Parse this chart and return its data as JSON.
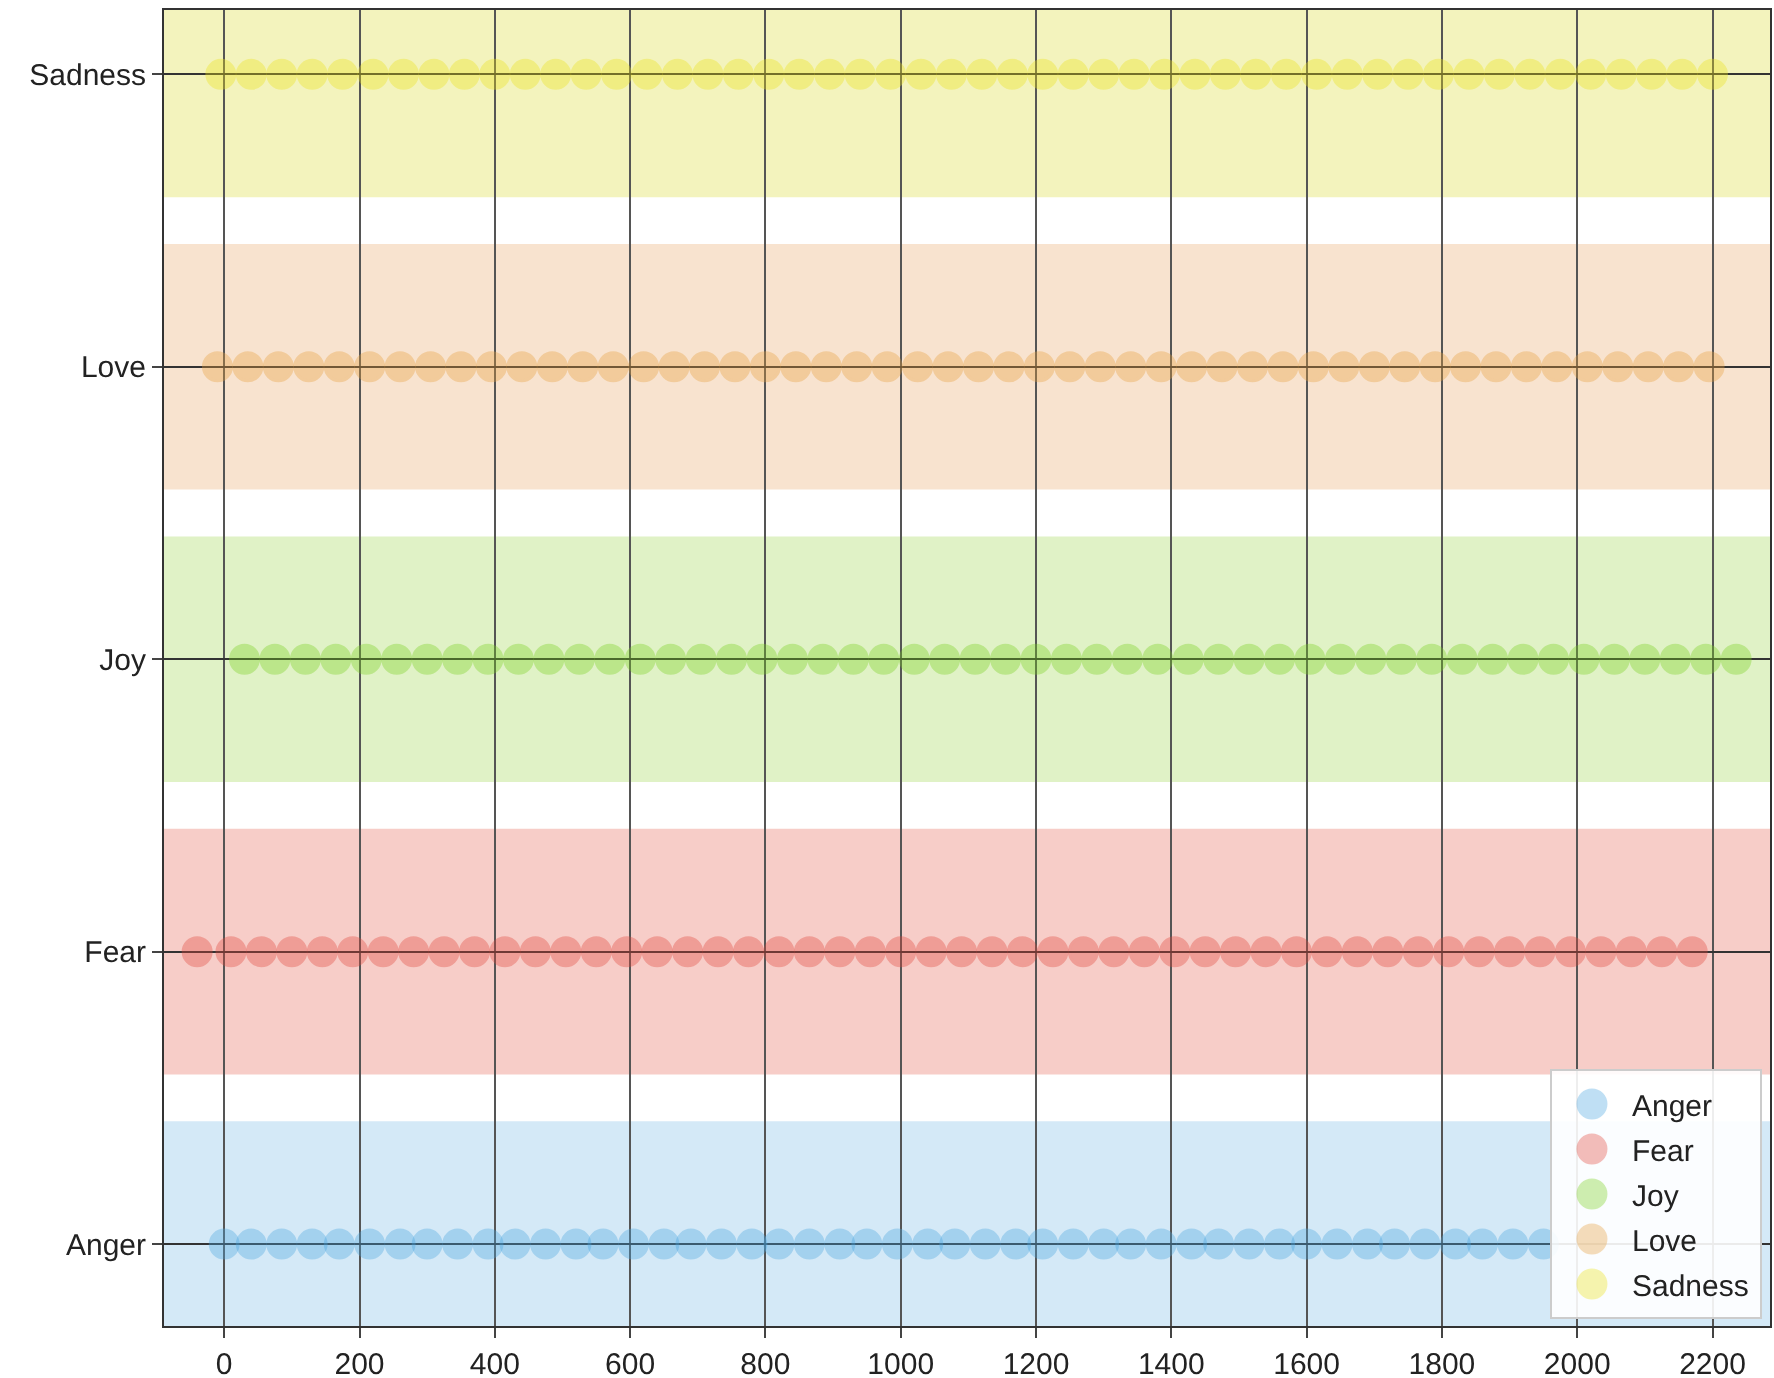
{
  "chart_data": {
    "type": "scatter",
    "orientation": "horizontal",
    "marker": "circle",
    "grid": true,
    "legend": "bottom right",
    "categories": [
      "Sadness",
      "Love",
      "Joy",
      "Fear",
      "Anger"
    ],
    "xlim": [
      -89,
      2285
    ],
    "xticks": [
      0,
      200,
      400,
      600,
      800,
      1000,
      1200,
      1400,
      1600,
      1800,
      2000,
      2200
    ],
    "bands": [
      {
        "axis": "y",
        "from": "Anger",
        "to": "Anger",
        "color": "#d4e9f7"
      },
      {
        "axis": "y",
        "from": "Fear",
        "to": "Fear",
        "color": "#f7cdc8"
      },
      {
        "axis": "y",
        "from": "Joy",
        "to": "Joy",
        "color": "#e0f2c6"
      },
      {
        "axis": "y",
        "from": "Love",
        "to": "Love",
        "color": "#f8e3cf"
      },
      {
        "axis": "y",
        "from": "Sadness",
        "to": "Sadness",
        "color": "#f3f3bd"
      }
    ],
    "series": [
      {
        "name": "Anger",
        "color": "#4aa6e0",
        "x": [
          "Anger",
          "Anger",
          "Anger",
          "Anger",
          "Anger",
          "Anger",
          "Anger",
          "Anger",
          "Anger",
          "Anger",
          "Anger",
          "Anger",
          "Anger",
          "Anger",
          "Anger",
          "Anger",
          "Anger",
          "Anger",
          "Anger",
          "Anger",
          "Anger",
          "Anger",
          "Anger",
          "Anger",
          "Anger",
          "Anger",
          "Anger",
          "Anger",
          "Anger",
          "Anger",
          "Anger",
          "Anger",
          "Anger",
          "Anger",
          "Anger",
          "Anger",
          "Anger",
          "Anger",
          "Anger",
          "Anger",
          "Anger",
          "Anger",
          "Anger",
          "Anger",
          "Anger",
          "Anger"
        ],
        "values": [
          0,
          40,
          85,
          130,
          170,
          215,
          260,
          300,
          345,
          390,
          430,
          475,
          520,
          560,
          605,
          650,
          690,
          735,
          780,
          820,
          865,
          910,
          950,
          995,
          1040,
          1080,
          1125,
          1170,
          1210,
          1255,
          1300,
          1340,
          1385,
          1430,
          1470,
          1515,
          1560,
          1600,
          1645,
          1690,
          1730,
          1775,
          1820,
          1860,
          1905,
          1950
        ]
      },
      {
        "name": "Fear",
        "color": "#e2453a",
        "x": [
          "Fear",
          "Fear",
          "Fear",
          "Fear",
          "Fear",
          "Fear",
          "Fear",
          "Fear",
          "Fear",
          "Fear",
          "Fear",
          "Fear",
          "Fear",
          "Fear",
          "Fear",
          "Fear",
          "Fear",
          "Fear",
          "Fear",
          "Fear",
          "Fear",
          "Fear",
          "Fear",
          "Fear",
          "Fear",
          "Fear",
          "Fear",
          "Fear",
          "Fear",
          "Fear",
          "Fear",
          "Fear",
          "Fear",
          "Fear",
          "Fear",
          "Fear",
          "Fear",
          "Fear",
          "Fear",
          "Fear",
          "Fear",
          "Fear",
          "Fear",
          "Fear",
          "Fear",
          "Fear",
          "Fear",
          "Fear",
          "Fear",
          "Fear"
        ],
        "values": [
          -40,
          10,
          55,
          100,
          145,
          190,
          235,
          280,
          325,
          370,
          415,
          460,
          505,
          550,
          595,
          640,
          685,
          730,
          775,
          820,
          865,
          910,
          955,
          1000,
          1045,
          1090,
          1135,
          1180,
          1225,
          1270,
          1315,
          1360,
          1405,
          1450,
          1495,
          1540,
          1585,
          1630,
          1675,
          1720,
          1765,
          1810,
          1855,
          1900,
          1945,
          1990,
          2035,
          2080,
          2125,
          2170
        ]
      },
      {
        "name": "Joy",
        "color": "#79d11e",
        "x": [
          "Joy",
          "Joy",
          "Joy",
          "Joy",
          "Joy",
          "Joy",
          "Joy",
          "Joy",
          "Joy",
          "Joy",
          "Joy",
          "Joy",
          "Joy",
          "Joy",
          "Joy",
          "Joy",
          "Joy",
          "Joy",
          "Joy",
          "Joy",
          "Joy",
          "Joy",
          "Joy",
          "Joy",
          "Joy",
          "Joy",
          "Joy",
          "Joy",
          "Joy",
          "Joy",
          "Joy",
          "Joy",
          "Joy",
          "Joy",
          "Joy",
          "Joy",
          "Joy",
          "Joy",
          "Joy",
          "Joy",
          "Joy",
          "Joy",
          "Joy",
          "Joy",
          "Joy",
          "Joy",
          "Joy",
          "Joy",
          "Joy",
          "Joy"
        ],
        "values": [
          30,
          75,
          120,
          165,
          210,
          255,
          300,
          345,
          390,
          435,
          480,
          525,
          570,
          615,
          660,
          705,
          750,
          795,
          840,
          885,
          930,
          975,
          1020,
          1065,
          1110,
          1155,
          1200,
          1245,
          1290,
          1335,
          1380,
          1425,
          1470,
          1515,
          1560,
          1605,
          1650,
          1695,
          1740,
          1785,
          1830,
          1875,
          1920,
          1965,
          2010,
          2055,
          2100,
          2145,
          2190,
          2235
        ]
      },
      {
        "name": "Love",
        "color": "#e79f3c",
        "x": [
          "Love",
          "Love",
          "Love",
          "Love",
          "Love",
          "Love",
          "Love",
          "Love",
          "Love",
          "Love",
          "Love",
          "Love",
          "Love",
          "Love",
          "Love",
          "Love",
          "Love",
          "Love",
          "Love",
          "Love",
          "Love",
          "Love",
          "Love",
          "Love",
          "Love",
          "Love",
          "Love",
          "Love",
          "Love",
          "Love",
          "Love",
          "Love",
          "Love",
          "Love",
          "Love",
          "Love",
          "Love",
          "Love",
          "Love",
          "Love",
          "Love",
          "Love",
          "Love",
          "Love",
          "Love",
          "Love",
          "Love",
          "Love",
          "Love",
          "Love"
        ],
        "values": [
          -10,
          35,
          80,
          125,
          170,
          215,
          260,
          305,
          350,
          395,
          440,
          485,
          530,
          575,
          620,
          665,
          710,
          755,
          800,
          845,
          890,
          935,
          980,
          1025,
          1070,
          1115,
          1160,
          1205,
          1250,
          1295,
          1340,
          1385,
          1430,
          1475,
          1520,
          1565,
          1610,
          1655,
          1700,
          1745,
          1790,
          1835,
          1880,
          1925,
          1970,
          2015,
          2060,
          2105,
          2150,
          2195
        ]
      },
      {
        "name": "Sadness",
        "color": "#ece317",
        "x": [
          "Sadness",
          "Sadness",
          "Sadness",
          "Sadness",
          "Sadness",
          "Sadness",
          "Sadness",
          "Sadness",
          "Sadness",
          "Sadness",
          "Sadness",
          "Sadness",
          "Sadness",
          "Sadness",
          "Sadness",
          "Sadness",
          "Sadness",
          "Sadness",
          "Sadness",
          "Sadness",
          "Sadness",
          "Sadness",
          "Sadness",
          "Sadness",
          "Sadness",
          "Sadness",
          "Sadness",
          "Sadness",
          "Sadness",
          "Sadness",
          "Sadness",
          "Sadness",
          "Sadness",
          "Sadness",
          "Sadness",
          "Sadness",
          "Sadness",
          "Sadness",
          "Sadness",
          "Sadness",
          "Sadness",
          "Sadness",
          "Sadness",
          "Sadness",
          "Sadness",
          "Sadness",
          "Sadness",
          "Sadness",
          "Sadness",
          "Sadness"
        ],
        "values": [
          -5,
          40,
          85,
          130,
          175,
          220,
          265,
          310,
          355,
          400,
          445,
          490,
          535,
          580,
          625,
          670,
          715,
          760,
          805,
          850,
          895,
          940,
          985,
          1030,
          1075,
          1120,
          1165,
          1210,
          1255,
          1300,
          1345,
          1390,
          1435,
          1480,
          1525,
          1570,
          1615,
          1660,
          1705,
          1750,
          1795,
          1840,
          1885,
          1930,
          1975,
          2020,
          2065,
          2110,
          2155,
          2200
        ]
      }
    ]
  }
}
